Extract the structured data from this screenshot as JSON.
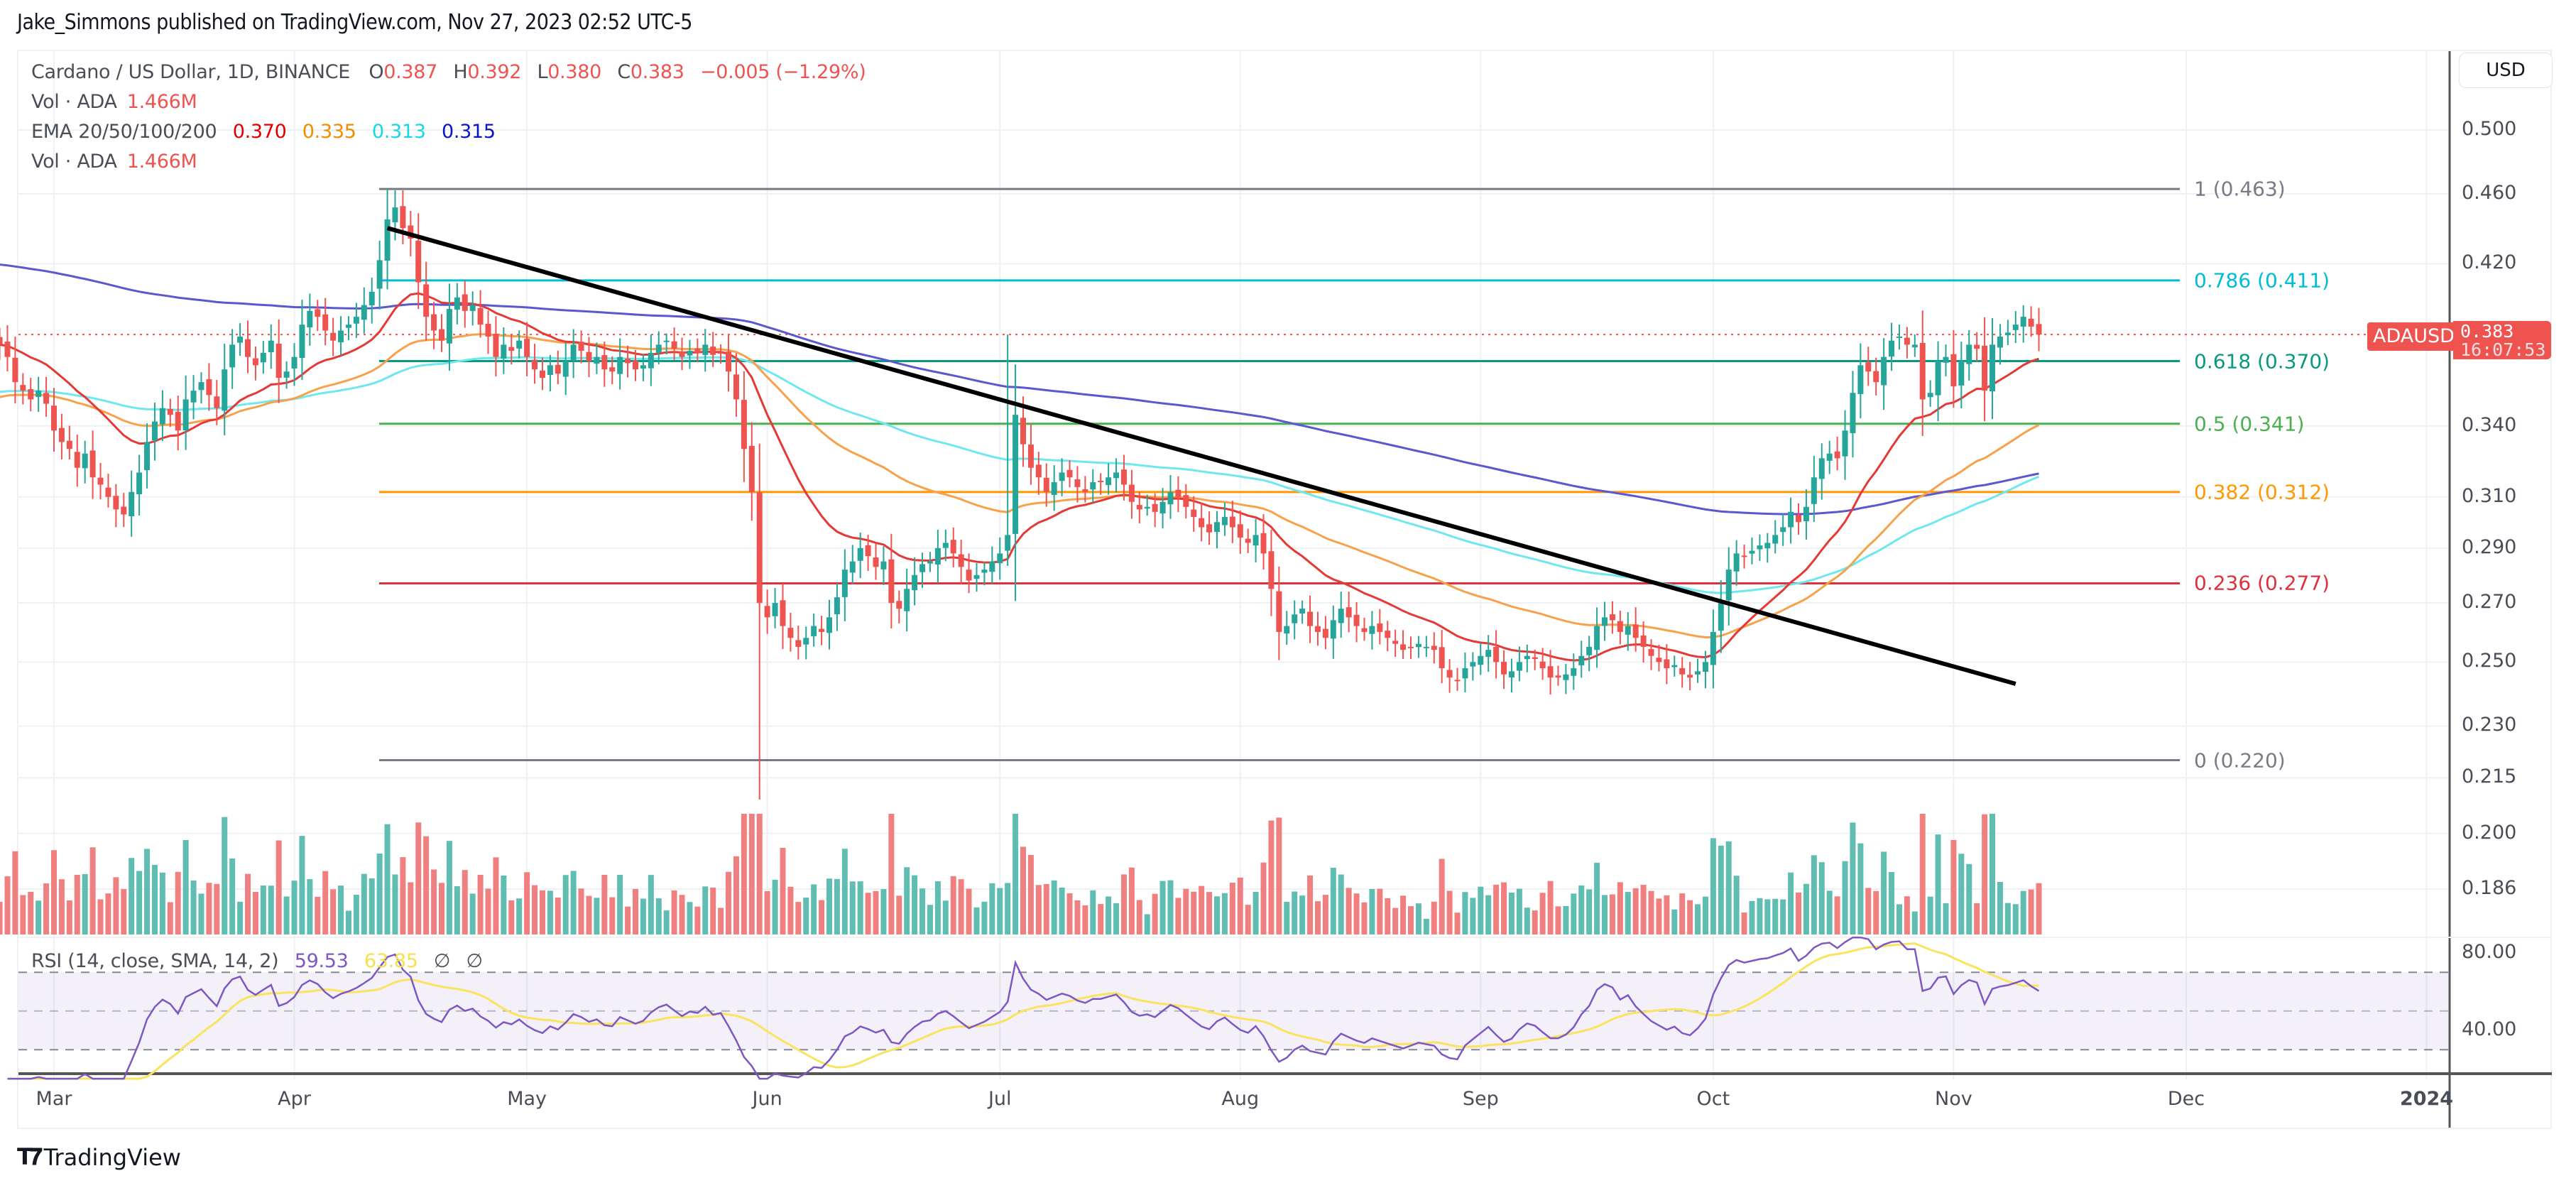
{
  "publisher": "Jake_Simmons published on TradingView.com, Nov 27, 2023 02:52 UTC-5",
  "legend": {
    "symbol": "Cardano / US Dollar, 1D, BINANCE",
    "o_label": "O",
    "o": "0.387",
    "h_label": "H",
    "h": "0.392",
    "l_label": "L",
    "l": "0.380",
    "c_label": "C",
    "c": "0.383",
    "change": "−0.005 (−1.29%)",
    "vol1_label": "Vol · ADA",
    "vol1": "1.466M",
    "ema_label": "EMA 20/50/100/200",
    "ema20": "0.370",
    "ema50": "0.335",
    "ema100": "0.313",
    "ema200": "0.315",
    "vol2_label": "Vol · ADA",
    "vol2": "1.466M"
  },
  "rsi_legend": {
    "label": "RSI (14, close, SMA, 14, 2)",
    "rsi": "59.53",
    "sma": "63.85",
    "na1": "∅",
    "na2": "∅"
  },
  "currency_button": "USD",
  "last_price": {
    "symbol": "ADAUSD",
    "price": "0.383",
    "countdown": "16:07:53"
  },
  "logo_text": "TradingView",
  "colors": {
    "up": "#26a69a",
    "down": "#ef5350",
    "up_vol": "#5fbdb2",
    "down_vol": "#f08080",
    "ema20": "#e53935",
    "ema50": "#f7a14a",
    "ema100": "#6ee7ef",
    "ema200": "#5b57d1",
    "rsi": "#7e57c2",
    "rsi_sma": "#f9e35f",
    "trendline": "#000000"
  },
  "chart_data": {
    "type": "candlestick",
    "title": "Cardano / US Dollar, 1D, BINANCE",
    "xlabel": "",
    "ylabel": "USD",
    "y_scale": "log",
    "price_ticks": [
      "0.500",
      "0.460",
      "0.420",
      "0.340",
      "0.310",
      "0.290",
      "0.270",
      "0.250",
      "0.230",
      "0.215",
      "0.200",
      "0.186"
    ],
    "rsi_ticks": [
      "80.00",
      "40.00"
    ],
    "x_ticks": [
      "Mar",
      "Apr",
      "May",
      "Jun",
      "Jul",
      "Aug",
      "Sep",
      "Oct",
      "Nov",
      "Dec",
      "2024"
    ],
    "fib_levels": [
      {
        "ratio": "1",
        "price": 0.463,
        "label": "1 (0.463)",
        "color": "#787b86"
      },
      {
        "ratio": "0.786",
        "price": 0.411,
        "label": "0.786 (0.411)",
        "color": "#00bcd4"
      },
      {
        "ratio": "0.618",
        "price": 0.37,
        "label": "0.618 (0.370)",
        "color": "#089981"
      },
      {
        "ratio": "0.5",
        "price": 0.341,
        "label": "0.5 (0.341)",
        "color": "#4caf50"
      },
      {
        "ratio": "0.382",
        "price": 0.312,
        "label": "0.382 (0.312)",
        "color": "#ff9800"
      },
      {
        "ratio": "0.236",
        "price": 0.277,
        "label": "0.236 (0.277)",
        "color": "#e0303e"
      },
      {
        "ratio": "0",
        "price": 0.22,
        "label": "0 (0.220)",
        "color": "#787b86"
      }
    ],
    "trendline": {
      "from": {
        "date": "2023-04-13",
        "price": 0.44
      },
      "to": {
        "date": "2023-11-09",
        "price": 0.243
      }
    },
    "start_date": "2023-02-22",
    "closes": [
      0.378,
      0.372,
      0.36,
      0.356,
      0.352,
      0.356,
      0.35,
      0.338,
      0.333,
      0.33,
      0.322,
      0.328,
      0.318,
      0.315,
      0.31,
      0.305,
      0.303,
      0.312,
      0.32,
      0.333,
      0.342,
      0.348,
      0.345,
      0.338,
      0.352,
      0.356,
      0.36,
      0.354,
      0.348,
      0.366,
      0.378,
      0.382,
      0.372,
      0.368,
      0.374,
      0.38,
      0.362,
      0.365,
      0.372,
      0.388,
      0.395,
      0.392,
      0.385,
      0.38,
      0.385,
      0.388,
      0.392,
      0.398,
      0.405,
      0.422,
      0.445,
      0.452,
      0.44,
      0.434,
      0.41,
      0.392,
      0.385,
      0.38,
      0.396,
      0.402,
      0.395,
      0.398,
      0.388,
      0.382,
      0.372,
      0.378,
      0.375,
      0.38,
      0.372,
      0.366,
      0.362,
      0.368,
      0.364,
      0.37,
      0.378,
      0.375,
      0.37,
      0.372,
      0.366,
      0.365,
      0.372,
      0.369,
      0.366,
      0.368,
      0.374,
      0.378,
      0.38,
      0.376,
      0.372,
      0.375,
      0.374,
      0.378,
      0.373,
      0.374,
      0.365,
      0.352,
      0.33,
      0.312,
      0.27,
      0.265,
      0.27,
      0.262,
      0.258,
      0.255,
      0.258,
      0.262,
      0.26,
      0.265,
      0.272,
      0.282,
      0.285,
      0.29,
      0.287,
      0.283,
      0.285,
      0.27,
      0.268,
      0.275,
      0.28,
      0.284,
      0.285,
      0.29,
      0.292,
      0.288,
      0.283,
      0.278,
      0.28,
      0.282,
      0.285,
      0.288,
      0.295,
      0.345,
      0.332,
      0.322,
      0.318,
      0.312,
      0.316,
      0.32,
      0.318,
      0.314,
      0.312,
      0.316,
      0.316,
      0.318,
      0.32,
      0.315,
      0.308,
      0.305,
      0.306,
      0.304,
      0.308,
      0.312,
      0.31,
      0.306,
      0.302,
      0.298,
      0.296,
      0.3,
      0.302,
      0.298,
      0.294,
      0.292,
      0.295,
      0.288,
      0.275,
      0.26,
      0.262,
      0.266,
      0.268,
      0.262,
      0.26,
      0.258,
      0.264,
      0.268,
      0.265,
      0.262,
      0.26,
      0.262,
      0.26,
      0.258,
      0.256,
      0.254,
      0.255,
      0.256,
      0.255,
      0.254,
      0.248,
      0.245,
      0.244,
      0.248,
      0.25,
      0.252,
      0.254,
      0.25,
      0.246,
      0.247,
      0.25,
      0.252,
      0.251,
      0.248,
      0.245,
      0.245,
      0.246,
      0.248,
      0.252,
      0.255,
      0.262,
      0.265,
      0.264,
      0.26,
      0.262,
      0.258,
      0.255,
      0.252,
      0.25,
      0.248,
      0.249,
      0.246,
      0.245,
      0.247,
      0.25,
      0.26,
      0.27,
      0.282,
      0.288,
      0.287,
      0.289,
      0.291,
      0.292,
      0.295,
      0.298,
      0.304,
      0.3,
      0.306,
      0.318,
      0.326,
      0.328,
      0.326,
      0.338,
      0.355,
      0.368,
      0.365,
      0.36,
      0.372,
      0.38,
      0.382,
      0.378,
      0.378,
      0.352,
      0.355,
      0.37,
      0.372,
      0.358,
      0.37,
      0.378,
      0.376,
      0.356,
      0.378,
      0.382,
      0.384,
      0.388,
      0.392,
      0.387,
      0.383
    ],
    "ema_final": {
      "ema20": 0.37,
      "ema50": 0.335,
      "ema100": 0.313,
      "ema200": 0.315
    },
    "rsi_final": 59.53,
    "rsi_sma_final": 63.85,
    "volume_last": "1.466M"
  }
}
